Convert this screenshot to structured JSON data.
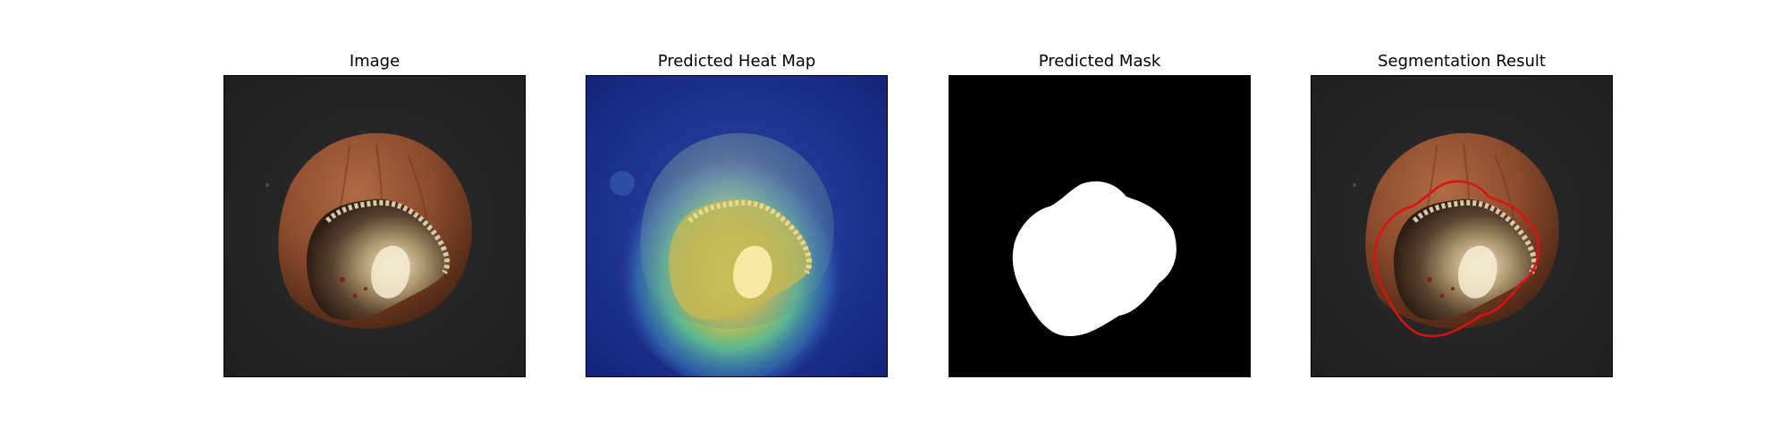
{
  "figure": {
    "panels": [
      {
        "title": "Image"
      },
      {
        "title": "Predicted Heat Map"
      },
      {
        "title": "Predicted Mask"
      },
      {
        "title": "Segmentation Result"
      }
    ]
  },
  "colors": {
    "background": "#262626",
    "shell": "#8a4a2c",
    "contour": "#e01010",
    "mask_fg": "#ffffff",
    "mask_bg": "#000000",
    "heat_low": "#1a2d8f",
    "heat_high": "#ffdc50"
  }
}
